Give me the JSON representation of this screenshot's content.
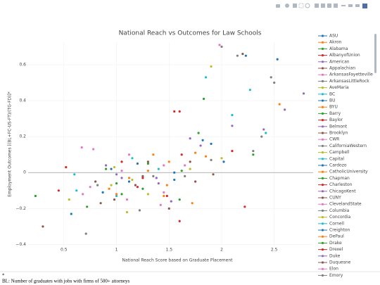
{
  "chart_data": {
    "type": "scatter",
    "title": "National Reach vs Outcomes for Law Schools",
    "x_label": "National Reach Score based on Graduate Placement",
    "y_label": "Employment Outcomes [(BL+FC-US-FT)/(TG-FD)]*",
    "footnote_marker": "*",
    "footnote": "BL: Number of graduates with jobs with firms of 500+ attorneys",
    "xlim": [
      0.16,
      2.87
    ],
    "ylim": [
      -0.41,
      0.725
    ],
    "xticks": [
      0.5,
      1,
      1.5,
      2,
      2.5
    ],
    "yticks": [
      {
        "value": -0.4,
        "label": "−0.4"
      },
      {
        "value": -0.2,
        "label": "−0.2"
      },
      0,
      0.2,
      0.4,
      0.6
    ],
    "grid": true,
    "legend": "right",
    "series": [
      {
        "name": "ASU",
        "color": "#1f77b4",
        "x": [
          2.53,
          1.12,
          0.95
        ],
        "values": [
          0.63,
          -0.05,
          0.02
        ]
      },
      {
        "name": "Akron",
        "color": "#ff7f0e",
        "x": [
          0.93,
          1.45,
          1.3
        ],
        "values": [
          -0.09,
          -0.13,
          0.01
        ]
      },
      {
        "name": "Alabama",
        "color": "#2ca02c",
        "x": [
          1.83,
          1.62,
          1.05
        ],
        "values": [
          0.41,
          0.01,
          -0.12
        ]
      },
      {
        "name": "AlbanyofUnion",
        "color": "#d62728",
        "x": [
          0.52,
          1.55,
          1.25
        ],
        "values": [
          0.03,
          0.34,
          -0.03
        ]
      },
      {
        "name": "American",
        "color": "#9467bd",
        "x": [
          1.05,
          1.4,
          1.7
        ],
        "values": [
          -0.03,
          -0.06,
          0.19
        ]
      },
      {
        "name": "Appalachian",
        "color": "#8c564b",
        "x": [
          0.3,
          0.85,
          1.18
        ],
        "values": [
          -0.3,
          -0.17,
          -0.07
        ]
      },
      {
        "name": "ArkansasFayetteville",
        "color": "#e377c2",
        "x": [
          1.98,
          0.78,
          1.65
        ],
        "values": [
          0.71,
          0.13,
          0.04
        ]
      },
      {
        "name": "ArkansasLittleRock",
        "color": "#7f7f7f",
        "x": [
          0.71,
          1.35,
          1.9
        ],
        "values": [
          -0.34,
          -0.02,
          0.07
        ]
      },
      {
        "name": "AveMaria",
        "color": "#bcbd22",
        "x": [
          1.9,
          1.1,
          0.55
        ],
        "values": [
          0.59,
          -0.22,
          -0.15
        ]
      },
      {
        "name": "BC",
        "color": "#17becf",
        "x": [
          1.85,
          1.15,
          0.6
        ],
        "values": [
          0.53,
          0.08,
          -0.01
        ]
      },
      {
        "name": "BU",
        "color": "#1f77b4",
        "x": [
          2.23,
          1.9,
          0.57
        ],
        "values": [
          0.65,
          0.16,
          -0.23
        ]
      },
      {
        "name": "BYU",
        "color": "#ff7f0e",
        "x": [
          2.55,
          1.75,
          1.48
        ],
        "values": [
          0.38,
          0.11,
          -0.07
        ]
      },
      {
        "name": "Barry",
        "color": "#2ca02c",
        "x": [
          0.23,
          0.72,
          1.6
        ],
        "values": [
          -0.13,
          -0.19,
          -0.15
        ]
      },
      {
        "name": "Baylor",
        "color": "#d62728",
        "x": [
          1.6,
          1.2,
          2.1
        ],
        "values": [
          0.34,
          -0.08,
          0.12
        ]
      },
      {
        "name": "Belmont",
        "color": "#9467bd",
        "x": [
          1.0,
          1.52,
          0.9
        ],
        "values": [
          -0.01,
          -0.16,
          0.04
        ]
      },
      {
        "name": "Brooklyn",
        "color": "#8c564b",
        "x": [
          2.2,
          1.3,
          1.75
        ],
        "values": [
          0.66,
          0.06,
          -0.05
        ]
      },
      {
        "name": "CWR",
        "color": "#e377c2",
        "x": [
          1.45,
          0.67,
          1.1
        ],
        "values": [
          -0.11,
          0.14,
          -0.15
        ]
      },
      {
        "name": "CaliforniaWestern",
        "color": "#7f7f7f",
        "x": [
          0.82,
          1.65,
          1.22
        ],
        "values": [
          -0.07,
          -0.02,
          -0.21
        ]
      },
      {
        "name": "Campbell",
        "color": "#bcbd22",
        "x": [
          1.15,
          0.98,
          2.0
        ],
        "values": [
          -0.04,
          0.03,
          0.08
        ]
      },
      {
        "name": "Capital",
        "color": "#17becf",
        "x": [
          0.62,
          1.4,
          1.0
        ],
        "values": [
          -0.1,
          0.02,
          -0.13
        ]
      },
      {
        "name": "Cardozo",
        "color": "#1f77b4",
        "x": [
          1.82,
          2.02,
          1.55
        ],
        "values": [
          0.18,
          0.06,
          -0.04
        ]
      },
      {
        "name": "CatholicUniversity",
        "color": "#ff7f0e",
        "x": [
          1.35,
          1.0,
          1.72
        ],
        "values": [
          0.1,
          -0.12,
          -0.17
        ]
      },
      {
        "name": "Chapman",
        "color": "#2ca02c",
        "x": [
          0.9,
          1.25,
          2.3
        ],
        "values": [
          0.02,
          -0.09,
          0.1
        ]
      },
      {
        "name": "Charleston",
        "color": "#d62728",
        "x": [
          0.45,
          1.6,
          1.05
        ],
        "values": [
          -0.1,
          -0.27,
          0.06
        ]
      },
      {
        "name": "ChicagoKent",
        "color": "#9467bd",
        "x": [
          1.8,
          1.38,
          2.1
        ],
        "values": [
          0.15,
          -0.03,
          0.26
        ]
      },
      {
        "name": "CUNY",
        "color": "#8c564b",
        "x": [
          1.5,
          0.8,
          1.92
        ],
        "values": [
          -0.2,
          -0.05,
          -0.01
        ]
      },
      {
        "name": "ClevelandState",
        "color": "#e377c2",
        "x": [
          1.05,
          0.75,
          1.45
        ],
        "values": [
          0.01,
          -0.08,
          0.04
        ]
      },
      {
        "name": "Columbia",
        "color": "#7f7f7f",
        "x": [
          2.15,
          2.47,
          2.0
        ],
        "values": [
          0.65,
          0.53,
          0.7
        ]
      },
      {
        "name": "Concordia",
        "color": "#bcbd22",
        "x": [
          0.95,
          1.3,
          1.7
        ],
        "values": [
          -0.07,
          -0.12,
          0.02
        ]
      },
      {
        "name": "Cornell",
        "color": "#17becf",
        "x": [
          2.27,
          2.42,
          2.1
        ],
        "values": [
          0.46,
          0.22,
          0.32
        ]
      },
      {
        "name": "Creighton",
        "color": "#1f77b4",
        "x": [
          1.2,
          1.55,
          0.87
        ],
        "values": [
          0.05,
          0.0,
          -0.11
        ]
      },
      {
        "name": "DePaul",
        "color": "#ff7f0e",
        "x": [
          1.5,
          1.85,
          1.12
        ],
        "values": [
          0.06,
          0.09,
          -0.03
        ]
      },
      {
        "name": "Drake",
        "color": "#2ca02c",
        "x": [
          1.3,
          1.78,
          1.0
        ],
        "values": [
          0.05,
          0.22,
          -0.06
        ]
      },
      {
        "name": "Drexel",
        "color": "#d62728",
        "x": [
          1.62,
          1.48,
          2.22
        ],
        "values": [
          0.1,
          -0.13,
          -0.19
        ]
      },
      {
        "name": "Duke",
        "color": "#9467bd",
        "x": [
          2.78,
          2.4,
          2.6
        ],
        "values": [
          0.44,
          0.24,
          0.35
        ]
      },
      {
        "name": "Duquesne",
        "color": "#8c564b",
        "x": [
          1.25,
          1.7,
          0.98
        ],
        "values": [
          -0.02,
          0.06,
          -0.15
        ]
      },
      {
        "name": "Elon",
        "color": "#e377c2",
        "x": [
          0.68,
          1.42,
          1.12
        ],
        "values": [
          -0.12,
          -0.18,
          0.1
        ]
      },
      {
        "name": "Emory",
        "color": "#7f7f7f",
        "x": [
          2.38,
          2.5,
          2.3
        ],
        "values": [
          0.2,
          0.5,
          0.12
        ]
      }
    ]
  }
}
